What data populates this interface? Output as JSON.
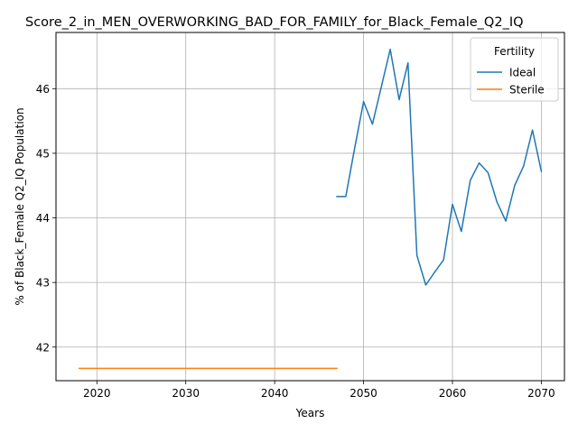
{
  "chart_data": {
    "type": "line",
    "title": "Score_2_in_MEN_OVERWORKING_BAD_FOR_FAMILY_for_Black_Female_Q2_IQ",
    "xlabel": "Years",
    "ylabel": "% of Black_Female Q2_IQ Population",
    "xlim": [
      2015.4,
      2072.6
    ],
    "ylim": [
      41.48,
      46.87
    ],
    "x_ticks": [
      2020,
      2030,
      2040,
      2050,
      2060,
      2070
    ],
    "y_ticks": [
      42,
      43,
      44,
      45,
      46
    ],
    "grid": true,
    "legend": {
      "title": "Fertility",
      "placement": "top-right"
    },
    "series": [
      {
        "name": "Ideal",
        "color": "#1f77b4",
        "x": [
          2047,
          2048,
          2049,
          2050,
          2051,
          2052,
          2053,
          2054,
          2055,
          2056,
          2057,
          2058,
          2059,
          2060,
          2061,
          2062,
          2063,
          2064,
          2065,
          2066,
          2067,
          2068,
          2069,
          2070
        ],
        "y": [
          44.33,
          44.33,
          45.08,
          45.8,
          45.45,
          46.03,
          46.61,
          45.83,
          46.4,
          43.42,
          42.96,
          43.16,
          43.35,
          44.21,
          43.79,
          44.58,
          44.85,
          44.7,
          44.25,
          43.95,
          44.5,
          44.8,
          45.36,
          44.72
        ]
      },
      {
        "name": "Sterile",
        "color": "#ff7f0e",
        "x": [
          2018,
          2047
        ],
        "y": [
          41.67,
          41.67
        ]
      }
    ]
  }
}
